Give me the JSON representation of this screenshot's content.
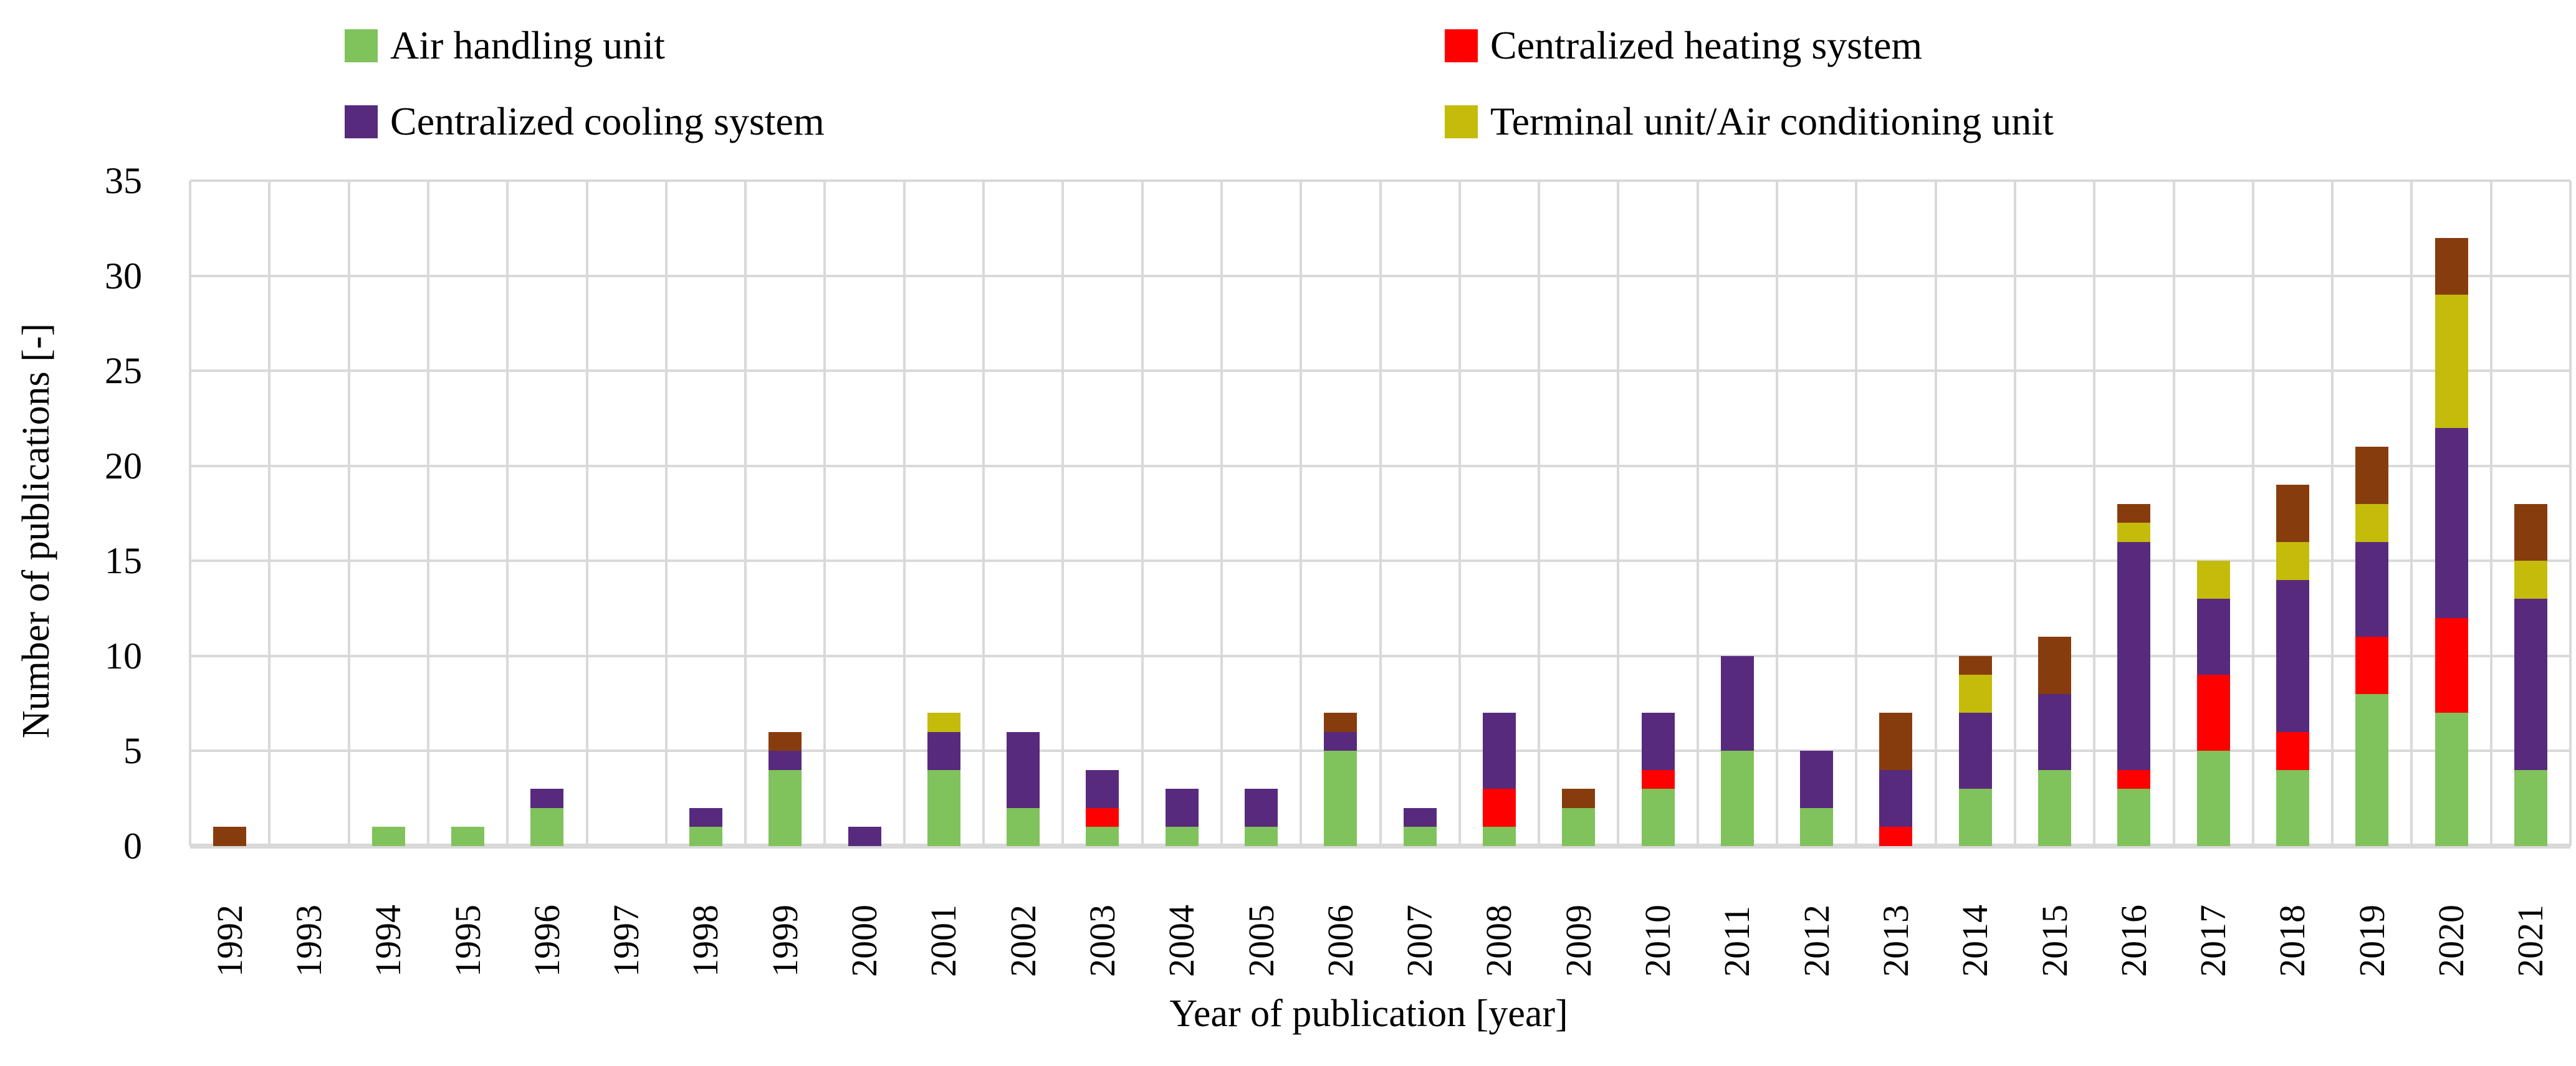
{
  "page": {
    "background": "#FFFFFF",
    "text_color": "#000000",
    "grid_color": "#D9D9D9"
  },
  "chart_data": {
    "type": "bar",
    "stacked": true,
    "title": "",
    "xlabel": "Year of publication [year]",
    "ylabel": "Number of publications [-]",
    "ylim": [
      0,
      35
    ],
    "ytick_step": 5,
    "grid": true,
    "legend_position": "top",
    "legend_columns": 2,
    "categories": [
      "1992",
      "1993",
      "1994",
      "1995",
      "1996",
      "1997",
      "1998",
      "1999",
      "2000",
      "2001",
      "2002",
      "2003",
      "2004",
      "2005",
      "2006",
      "2007",
      "2008",
      "2009",
      "2010",
      "2011",
      "2012",
      "2013",
      "2014",
      "2015",
      "2016",
      "2017",
      "2018",
      "2019",
      "2020",
      "2021"
    ],
    "series": [
      {
        "name": "Air handling unit",
        "color": "#80C25B",
        "in_legend": true,
        "values": [
          0,
          0,
          1,
          1,
          2,
          0,
          1,
          4,
          0,
          4,
          2,
          1,
          1,
          1,
          5,
          1,
          1,
          2,
          3,
          5,
          2,
          0,
          3,
          4,
          3,
          5,
          4,
          8,
          7,
          4
        ]
      },
      {
        "name": "Centralized heating system",
        "color": "#FF0000",
        "in_legend": true,
        "values": [
          0,
          0,
          0,
          0,
          0,
          0,
          0,
          0,
          0,
          0,
          0,
          1,
          0,
          0,
          0,
          0,
          2,
          0,
          1,
          0,
          0,
          1,
          0,
          0,
          1,
          4,
          2,
          3,
          5,
          0
        ]
      },
      {
        "name": "Centralized cooling system",
        "color": "#572A7D",
        "in_legend": true,
        "values": [
          0,
          0,
          0,
          0,
          1,
          0,
          1,
          1,
          1,
          2,
          4,
          2,
          2,
          2,
          1,
          1,
          4,
          0,
          3,
          5,
          3,
          3,
          4,
          4,
          12,
          4,
          8,
          5,
          10,
          9
        ]
      },
      {
        "name": "Terminal unit/Air conditioning unit",
        "color": "#C4BB0B",
        "in_legend": true,
        "values": [
          0,
          0,
          0,
          0,
          0,
          0,
          0,
          0,
          0,
          1,
          0,
          0,
          0,
          0,
          0,
          0,
          0,
          0,
          0,
          0,
          0,
          0,
          2,
          0,
          1,
          2,
          2,
          2,
          7,
          2
        ]
      },
      {
        "name": "Unlabeled (brown)",
        "color": "#873C0E",
        "in_legend": false,
        "values": [
          1,
          0,
          0,
          0,
          0,
          0,
          0,
          1,
          0,
          0,
          0,
          0,
          0,
          0,
          1,
          0,
          0,
          1,
          0,
          0,
          0,
          3,
          1,
          3,
          1,
          0,
          3,
          3,
          3,
          3
        ]
      }
    ]
  }
}
